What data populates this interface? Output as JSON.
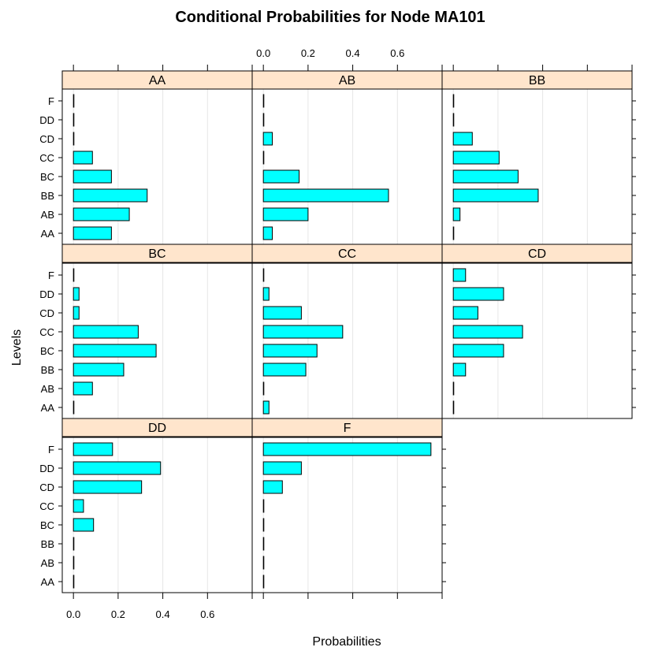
{
  "chart_data": {
    "type": "bar",
    "orientation": "horizontal",
    "title": "Conditional Probabilities for Node MA101",
    "xlabel": "Probabilities",
    "ylabel": "Levels",
    "xlim": [
      -0.05,
      0.8
    ],
    "x_ticks": [
      "0.0",
      "0.2",
      "0.4",
      "0.6"
    ],
    "tick_values": [
      0,
      0.2,
      0.4,
      0.6
    ],
    "levels": [
      "AA",
      "AB",
      "BB",
      "BC",
      "CC",
      "CD",
      "DD",
      "F"
    ],
    "grid": true,
    "colors": {
      "bar": "#00ffff",
      "bar_edge": "#000000",
      "strip": "#ffe5cc",
      "grid": "#e6e6e6",
      "frame": "#000000"
    },
    "panels": [
      {
        "name": "AA",
        "values": [
          0.17,
          0.25,
          0.33,
          0.17,
          0.085,
          0.0,
          0.0,
          0.0
        ]
      },
      {
        "name": "AB",
        "values": [
          0.04,
          0.2,
          0.56,
          0.16,
          0.0,
          0.04,
          0.0,
          0.0
        ]
      },
      {
        "name": "BB",
        "values": [
          0.0,
          0.03,
          0.38,
          0.29,
          0.205,
          0.085,
          0.0,
          0.0
        ]
      },
      {
        "name": "BC",
        "values": [
          0.0,
          0.085,
          0.225,
          0.37,
          0.29,
          0.025,
          0.025,
          0.0
        ]
      },
      {
        "name": "CC",
        "values": [
          0.025,
          0.0,
          0.19,
          0.24,
          0.355,
          0.17,
          0.025,
          0.0
        ]
      },
      {
        "name": "CD",
        "values": [
          0.0,
          0.0,
          0.055,
          0.225,
          0.31,
          0.11,
          0.225,
          0.055
        ]
      },
      {
        "name": "DD",
        "values": [
          0.0,
          0.0,
          0.0,
          0.09,
          0.045,
          0.305,
          0.39,
          0.175
        ]
      },
      {
        "name": "F",
        "values": [
          0.0,
          0.0,
          0.0,
          0.0,
          0.0,
          0.085,
          0.17,
          0.75
        ]
      }
    ]
  }
}
